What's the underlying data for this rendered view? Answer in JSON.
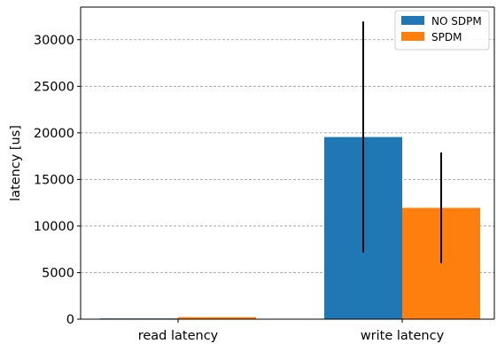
{
  "chart_data": {
    "type": "bar",
    "categories": [
      "read latency",
      "write latency"
    ],
    "series": [
      {
        "name": "NO SDPM",
        "color": "#1f77b4",
        "values": [
          80,
          19550
        ],
        "error": [
          0,
          12400
        ]
      },
      {
        "name": "SPDM",
        "color": "#ff7f0e",
        "values": [
          220,
          11950
        ],
        "error": [
          0,
          5950
        ]
      }
    ],
    "ylabel": "latency [us]",
    "xlabel": "",
    "ylim": [
      0,
      33500
    ],
    "yticks": [
      0,
      5000,
      10000,
      15000,
      20000,
      25000,
      30000
    ],
    "grid": "y-dashed",
    "legend_position": "top-right",
    "error_bar_color": "#000000"
  }
}
